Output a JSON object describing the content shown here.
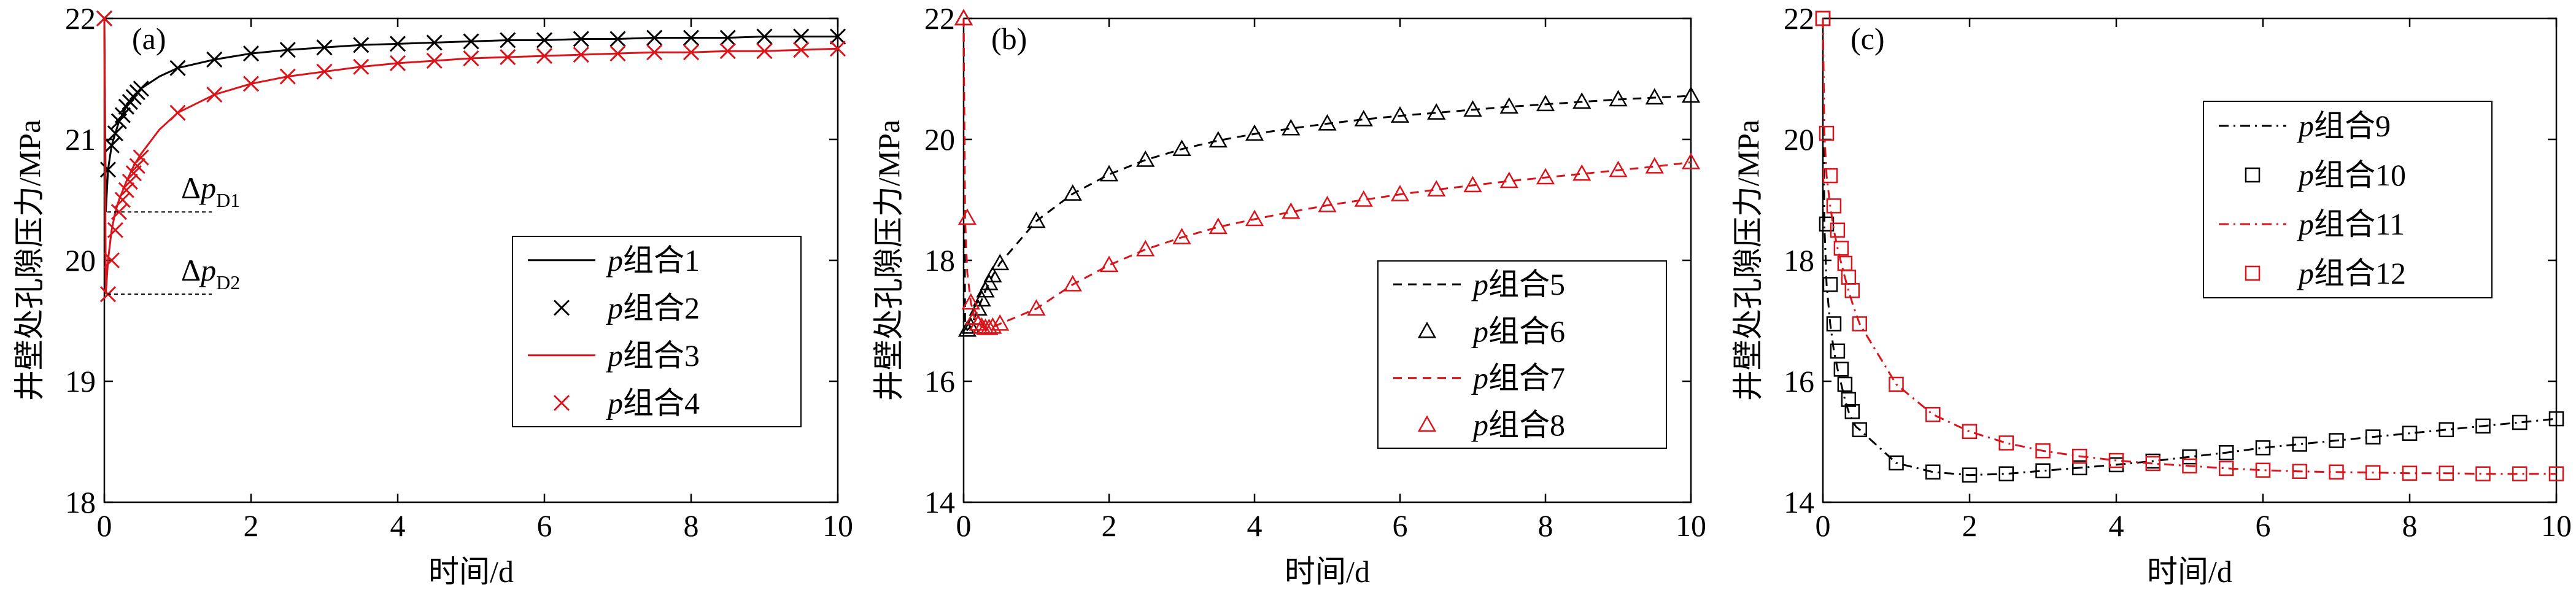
{
  "chart_data": [
    {
      "type": "line",
      "panel_label": "(a)",
      "xlabel": "时间/d",
      "ylabel": "井壁处孔隙压力/MPa",
      "xlim": [
        0,
        10
      ],
      "ylim": [
        18,
        22
      ],
      "x_ticks": [
        "0",
        "2",
        "4",
        "6",
        "8",
        "10"
      ],
      "y_ticks": [
        "18",
        "19",
        "20",
        "21",
        "22"
      ],
      "legend_position": "center-right",
      "annotations": [
        {
          "text": "Δp",
          "sub": "D1",
          "y": 20.4
        },
        {
          "text": "Δp",
          "sub": "D2",
          "y": 19.72
        }
      ],
      "series": [
        {
          "name": "p组合1",
          "style": "line",
          "color": "#000000",
          "dash": "",
          "x": [
            0,
            0.02,
            0.05,
            0.1,
            0.15,
            0.2,
            0.3,
            0.4,
            0.5,
            0.75,
            1,
            1.5,
            2,
            2.5,
            3,
            3.5,
            4,
            4.5,
            5,
            5.5,
            6,
            6.5,
            7,
            7.5,
            8,
            8.5,
            9,
            9.5,
            10
          ],
          "y": [
            22,
            20.4,
            20.75,
            20.95,
            21.05,
            21.15,
            21.27,
            21.35,
            21.42,
            21.52,
            21.59,
            21.66,
            21.71,
            21.74,
            21.76,
            21.78,
            21.79,
            21.8,
            21.81,
            21.82,
            21.82,
            21.83,
            21.83,
            21.84,
            21.84,
            21.84,
            21.85,
            21.85,
            21.85
          ]
        },
        {
          "name": "p组合2",
          "style": "marker",
          "marker": "x",
          "color": "#000000",
          "x": [
            0,
            0.05,
            0.1,
            0.15,
            0.2,
            0.25,
            0.3,
            0.35,
            0.4,
            0.45,
            0.5,
            1,
            1.5,
            2,
            2.5,
            3,
            3.5,
            4,
            4.5,
            5,
            5.5,
            6,
            6.5,
            7,
            7.5,
            8,
            8.5,
            9,
            9.5,
            10
          ],
          "y": [
            22,
            20.75,
            20.95,
            21.05,
            21.15,
            21.2,
            21.27,
            21.31,
            21.35,
            21.39,
            21.42,
            21.59,
            21.66,
            21.71,
            21.74,
            21.76,
            21.78,
            21.79,
            21.8,
            21.81,
            21.82,
            21.82,
            21.83,
            21.83,
            21.84,
            21.84,
            21.84,
            21.85,
            21.85,
            21.85
          ]
        },
        {
          "name": "p组合3",
          "style": "line",
          "color": "#d9141b",
          "dash": "",
          "x": [
            0,
            0.02,
            0.05,
            0.1,
            0.15,
            0.2,
            0.3,
            0.4,
            0.5,
            0.75,
            1,
            1.5,
            2,
            2.5,
            3,
            3.5,
            4,
            4.5,
            5,
            5.5,
            6,
            6.5,
            7,
            7.5,
            8,
            8.5,
            9,
            9.5,
            10
          ],
          "y": [
            22,
            19.72,
            20.0,
            20.25,
            20.4,
            20.5,
            20.65,
            20.78,
            20.88,
            21.08,
            21.22,
            21.37,
            21.46,
            21.52,
            21.56,
            21.6,
            21.63,
            21.65,
            21.67,
            21.68,
            21.69,
            21.7,
            21.71,
            21.72,
            21.72,
            21.73,
            21.73,
            21.74,
            21.75
          ]
        },
        {
          "name": "p组合4",
          "style": "marker",
          "marker": "x",
          "color": "#d9141b",
          "x": [
            0,
            0.05,
            0.1,
            0.15,
            0.2,
            0.25,
            0.3,
            0.35,
            0.4,
            0.45,
            0.5,
            1,
            1.5,
            2,
            2.5,
            3,
            3.5,
            4,
            4.5,
            5,
            5.5,
            6,
            6.5,
            7,
            7.5,
            8,
            8.5,
            9,
            9.5,
            10
          ],
          "y": [
            22,
            19.72,
            20.0,
            20.25,
            20.4,
            20.5,
            20.58,
            20.65,
            20.72,
            20.78,
            20.85,
            21.22,
            21.37,
            21.46,
            21.52,
            21.56,
            21.6,
            21.63,
            21.65,
            21.67,
            21.68,
            21.69,
            21.7,
            21.71,
            21.72,
            21.72,
            21.73,
            21.73,
            21.74,
            21.75
          ]
        }
      ]
    },
    {
      "type": "line",
      "panel_label": "(b)",
      "xlabel": "时间/d",
      "ylabel": "井壁处孔隙压力/MPa",
      "xlim": [
        0,
        10
      ],
      "ylim": [
        14,
        22
      ],
      "x_ticks": [
        "0",
        "2",
        "4",
        "6",
        "8",
        "10"
      ],
      "y_ticks": [
        "14",
        "16",
        "18",
        "20",
        "22"
      ],
      "legend_position": "lower-right",
      "series": [
        {
          "name": "p组合5",
          "style": "line",
          "color": "#000000",
          "dash": "14,10",
          "x": [
            0,
            0.02,
            0.05,
            0.1,
            0.15,
            0.2,
            0.25,
            0.3,
            0.35,
            0.4,
            0.45,
            0.5,
            1,
            1.5,
            2,
            2.5,
            3,
            3.5,
            4,
            4.5,
            5,
            5.5,
            6,
            6.5,
            7,
            7.5,
            8,
            8.5,
            9,
            9.5,
            10
          ],
          "y": [
            22,
            16.9,
            16.85,
            16.9,
            17.05,
            17.2,
            17.35,
            17.5,
            17.62,
            17.75,
            17.85,
            17.95,
            18.65,
            19.1,
            19.42,
            19.66,
            19.84,
            19.98,
            20.09,
            20.18,
            20.26,
            20.33,
            20.39,
            20.44,
            20.49,
            20.54,
            20.58,
            20.62,
            20.66,
            20.69,
            20.72
          ]
        },
        {
          "name": "p组合6",
          "style": "marker",
          "marker": "triangle",
          "color": "#000000",
          "x": [
            0,
            0.05,
            0.1,
            0.15,
            0.2,
            0.25,
            0.3,
            0.35,
            0.4,
            0.5,
            1,
            1.5,
            2,
            2.5,
            3,
            3.5,
            4,
            4.5,
            5,
            5.5,
            6,
            6.5,
            7,
            7.5,
            8,
            8.5,
            9,
            9.5,
            10
          ],
          "y": [
            22,
            16.85,
            16.9,
            17.05,
            17.2,
            17.35,
            17.5,
            17.62,
            17.75,
            17.95,
            18.65,
            19.1,
            19.42,
            19.66,
            19.84,
            19.98,
            20.09,
            20.18,
            20.26,
            20.33,
            20.39,
            20.44,
            20.49,
            20.54,
            20.58,
            20.62,
            20.66,
            20.69,
            20.72
          ]
        },
        {
          "name": "p组合7",
          "style": "line",
          "color": "#d9141b",
          "dash": "14,10",
          "x": [
            0,
            0.02,
            0.05,
            0.1,
            0.15,
            0.2,
            0.25,
            0.3,
            0.35,
            0.4,
            0.45,
            0.5,
            1,
            1.5,
            2,
            2.5,
            3,
            3.5,
            4,
            4.5,
            5,
            5.5,
            6,
            6.5,
            7,
            7.5,
            8,
            8.5,
            9,
            9.5,
            10
          ],
          "y": [
            22,
            18.7,
            17.8,
            17.3,
            17.05,
            16.95,
            16.9,
            16.88,
            16.88,
            16.9,
            16.92,
            16.95,
            17.2,
            17.6,
            17.92,
            18.18,
            18.38,
            18.55,
            18.68,
            18.8,
            18.91,
            19.0,
            19.09,
            19.17,
            19.24,
            19.31,
            19.37,
            19.43,
            19.49,
            19.55,
            19.62
          ]
        },
        {
          "name": "p组合8",
          "style": "marker",
          "marker": "triangle",
          "color": "#d9141b",
          "x": [
            0,
            0.05,
            0.1,
            0.15,
            0.2,
            0.25,
            0.3,
            0.35,
            0.4,
            0.5,
            1,
            1.5,
            2,
            2.5,
            3,
            3.5,
            4,
            4.5,
            5,
            5.5,
            6,
            6.5,
            7,
            7.5,
            8,
            8.5,
            9,
            9.5,
            10
          ],
          "y": [
            22,
            18.7,
            17.3,
            17.05,
            16.95,
            16.9,
            16.88,
            16.88,
            16.9,
            16.95,
            17.2,
            17.6,
            17.92,
            18.18,
            18.38,
            18.55,
            18.68,
            18.8,
            18.91,
            19.0,
            19.09,
            19.17,
            19.24,
            19.31,
            19.37,
            19.43,
            19.49,
            19.55,
            19.62
          ]
        }
      ]
    },
    {
      "type": "line",
      "panel_label": "(c)",
      "xlabel": "时间/d",
      "ylabel": "井壁处孔隙压力/MPa",
      "xlim": [
        0,
        10
      ],
      "ylim": [
        14,
        22
      ],
      "x_ticks": [
        "0",
        "2",
        "4",
        "6",
        "8",
        "10"
      ],
      "y_ticks": [
        "14",
        "16",
        "18",
        "20",
        "22"
      ],
      "legend_position": "top-right",
      "series": [
        {
          "name": "p组合9",
          "style": "line",
          "color": "#000000",
          "dash": "16,8,3,8",
          "x": [
            0,
            0.02,
            0.05,
            0.1,
            0.15,
            0.2,
            0.25,
            0.3,
            0.35,
            0.4,
            0.45,
            0.5,
            1,
            1.5,
            2,
            2.5,
            3,
            3.5,
            4,
            4.5,
            5,
            5.5,
            6,
            6.5,
            7,
            7.5,
            8,
            8.5,
            9,
            9.5,
            10
          ],
          "y": [
            22,
            18.6,
            17.6,
            16.95,
            16.5,
            16.2,
            15.95,
            15.7,
            15.5,
            15.35,
            15.25,
            15.2,
            14.65,
            14.5,
            14.45,
            14.47,
            14.52,
            14.57,
            14.62,
            14.68,
            14.75,
            14.82,
            14.9,
            14.96,
            15.02,
            15.08,
            15.14,
            15.2,
            15.26,
            15.32,
            15.38
          ]
        },
        {
          "name": "p组合10",
          "style": "marker",
          "marker": "square",
          "color": "#000000",
          "x": [
            0,
            0.05,
            0.1,
            0.15,
            0.2,
            0.25,
            0.3,
            0.35,
            0.4,
            0.5,
            1,
            1.5,
            2,
            2.5,
            3,
            3.5,
            4,
            4.5,
            5,
            5.5,
            6,
            6.5,
            7,
            7.5,
            8,
            8.5,
            9,
            9.5,
            10
          ],
          "y": [
            22,
            18.6,
            17.6,
            16.95,
            16.5,
            16.2,
            15.95,
            15.7,
            15.5,
            15.2,
            14.65,
            14.5,
            14.45,
            14.47,
            14.52,
            14.57,
            14.62,
            14.68,
            14.75,
            14.82,
            14.9,
            14.96,
            15.02,
            15.08,
            15.14,
            15.2,
            15.26,
            15.32,
            15.38
          ]
        },
        {
          "name": "p组合11",
          "style": "line",
          "color": "#d9141b",
          "dash": "16,8,3,8",
          "x": [
            0,
            0.02,
            0.05,
            0.1,
            0.15,
            0.2,
            0.25,
            0.3,
            0.35,
            0.4,
            0.45,
            0.5,
            1,
            1.5,
            2,
            2.5,
            3,
            3.5,
            4,
            4.5,
            5,
            5.5,
            6,
            6.5,
            7,
            7.5,
            8,
            8.5,
            9,
            9.5,
            10
          ],
          "y": [
            22,
            20.1,
            19.4,
            18.9,
            18.5,
            18.2,
            17.95,
            17.72,
            17.5,
            17.3,
            17.12,
            16.95,
            15.95,
            15.45,
            15.17,
            14.98,
            14.85,
            14.76,
            14.69,
            14.64,
            14.6,
            14.56,
            14.53,
            14.51,
            14.5,
            14.49,
            14.48,
            14.48,
            14.47,
            14.47,
            14.47
          ]
        },
        {
          "name": "p组合12",
          "style": "marker",
          "marker": "square",
          "color": "#d9141b",
          "x": [
            0,
            0.05,
            0.1,
            0.15,
            0.2,
            0.25,
            0.3,
            0.35,
            0.4,
            0.5,
            1,
            1.5,
            2,
            2.5,
            3,
            3.5,
            4,
            4.5,
            5,
            5.5,
            6,
            6.5,
            7,
            7.5,
            8,
            8.5,
            9,
            9.5,
            10
          ],
          "y": [
            22,
            20.1,
            19.4,
            18.9,
            18.5,
            18.2,
            17.95,
            17.72,
            17.5,
            16.95,
            15.95,
            15.45,
            15.17,
            14.98,
            14.85,
            14.76,
            14.69,
            14.64,
            14.6,
            14.56,
            14.53,
            14.51,
            14.5,
            14.49,
            14.48,
            14.48,
            14.47,
            14.47,
            14.47
          ]
        }
      ]
    }
  ]
}
